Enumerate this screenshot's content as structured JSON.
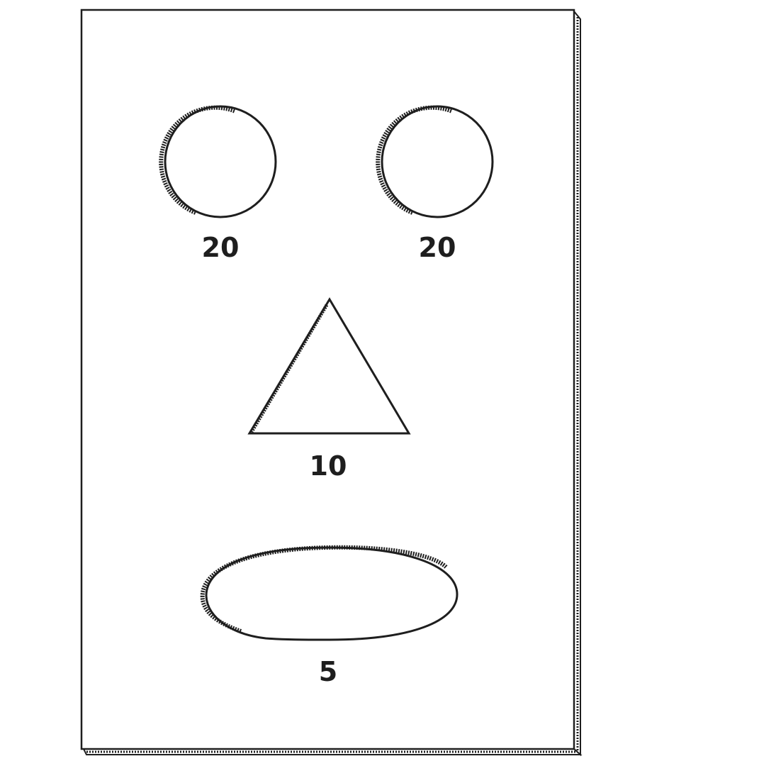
{
  "board": {
    "holes": [
      {
        "shape": "circle",
        "position": "top-left",
        "points": "20"
      },
      {
        "shape": "circle",
        "position": "top-right",
        "points": "20"
      },
      {
        "shape": "triangle",
        "position": "middle",
        "points": "10"
      },
      {
        "shape": "oval",
        "position": "bottom",
        "points": "5"
      }
    ]
  },
  "colors": {
    "ink": "#1e1e1e",
    "board": "#ffffff"
  }
}
